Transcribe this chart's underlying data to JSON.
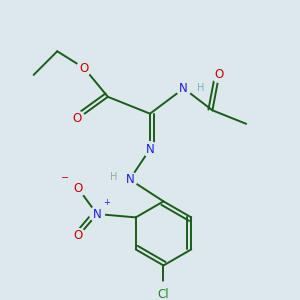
{
  "bg_color": "#dde8ec",
  "bond_color": "#1a5c1a",
  "bond_width": 1.4,
  "dbo": 0.012,
  "atom_bg_r": 0.022,
  "colors": {
    "N": "#1a1aee",
    "O": "#cc0000",
    "Cl": "#1a8c1a",
    "H": "#7ab0b8",
    "C": "#1a5c1a"
  },
  "fs": 8.5,
  "fs_small": 7.0
}
